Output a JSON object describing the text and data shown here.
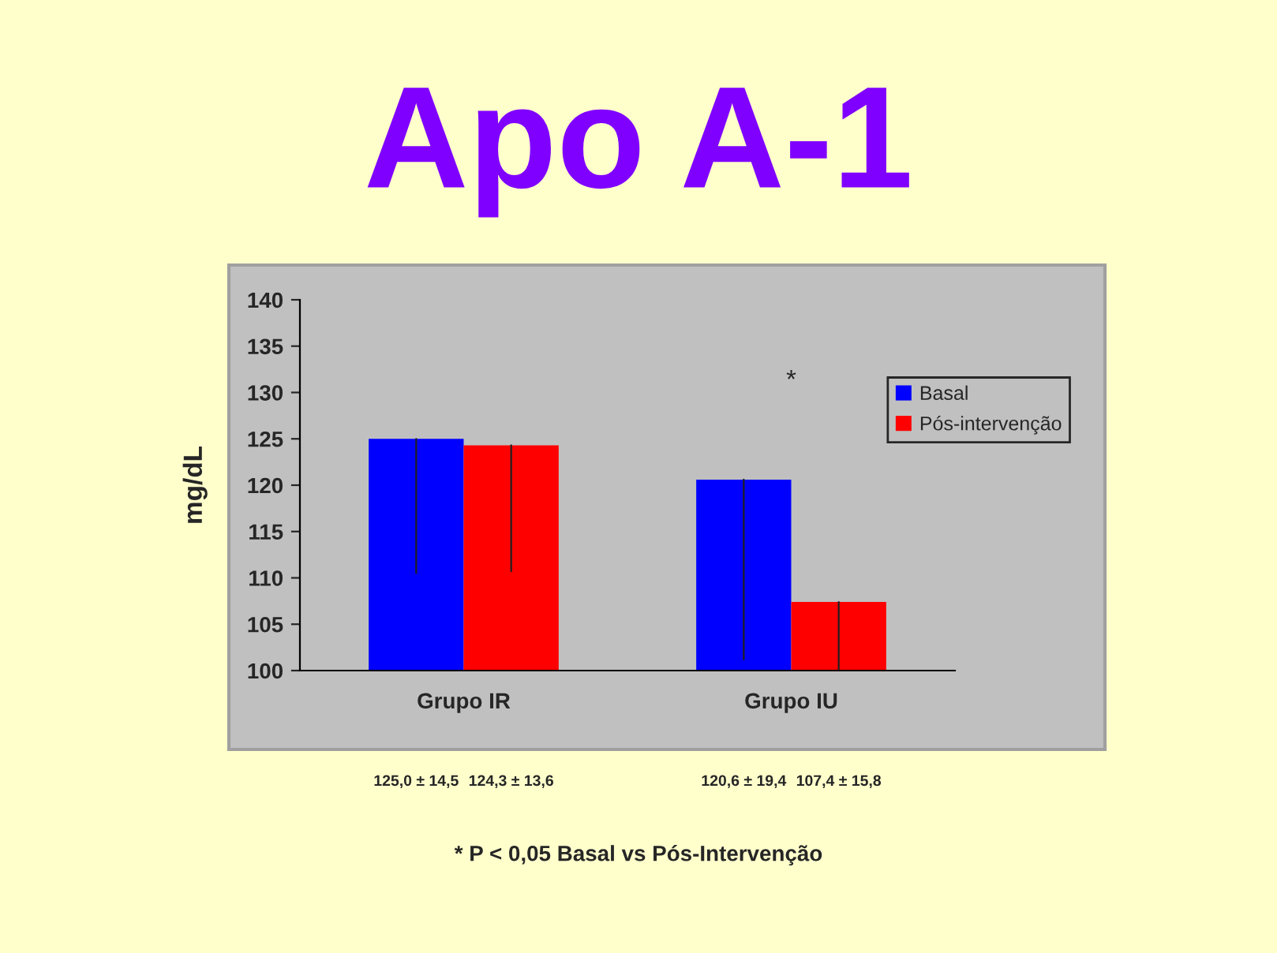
{
  "chart_data": {
    "type": "bar",
    "title": "Apo A-1",
    "ylabel": "mg/dL",
    "categories": [
      "Grupo IR",
      "Grupo IU"
    ],
    "series": [
      {
        "name": "Basal",
        "color": "#0000ff",
        "values": [
          125.0,
          120.6
        ],
        "errors": [
          [
            110.5,
            125.0
          ],
          [
            101.2,
            120.6
          ]
        ]
      },
      {
        "name": "Pós-intervenção",
        "color": "#ff0000",
        "values": [
          124.3,
          107.4
        ],
        "errors": [
          [
            110.7,
            124.3
          ],
          [
            100,
            107.4
          ]
        ]
      }
    ],
    "ylim": [
      100,
      140
    ],
    "yticks": [
      100,
      105,
      110,
      115,
      120,
      125,
      130,
      135,
      140
    ],
    "grid": false,
    "legend": "right",
    "annotations": [
      "*",
      "125,0 ± 14,5",
      "124,3 ± 13,6",
      "120,6 ± 19,4",
      "107,4 ± 15,8",
      "* P < 0,05 Basal vs Pós-Intervenção"
    ]
  }
}
